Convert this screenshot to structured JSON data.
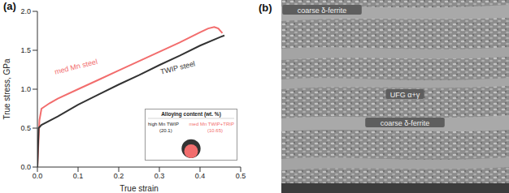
{
  "chart_data": {
    "type": "line",
    "panel": "(a)",
    "x_label": "True strain",
    "y_label": "True stress, GPa",
    "xlim": [
      0,
      0.5
    ],
    "xticks": [
      {
        "value": 0,
        "label": "0.0"
      },
      0.1,
      0.2,
      0.3,
      0.4,
      0.5
    ],
    "ylim": [
      0,
      2.0
    ],
    "yticks": [
      {
        "value": 0,
        "label": "0.0"
      },
      0.5,
      {
        "value": 1,
        "label": "1.0"
      },
      1.5,
      {
        "value": 2,
        "label": "2.0"
      }
    ],
    "series": [
      {
        "name": "med Mn steel",
        "color": "#f26d6d",
        "x": [
          0,
          0.005,
          0.01,
          0.03,
          0.05,
          0.1,
          0.15,
          0.2,
          0.25,
          0.3,
          0.35,
          0.4,
          0.42,
          0.435,
          0.445,
          0.455
        ],
        "values": [
          0,
          0.6,
          0.75,
          0.82,
          0.88,
          1.0,
          1.12,
          1.24,
          1.36,
          1.48,
          1.6,
          1.73,
          1.78,
          1.8,
          1.78,
          1.72
        ]
      },
      {
        "name": "TWIP steel",
        "color": "#333333",
        "x": [
          0,
          0.003,
          0.01,
          0.05,
          0.1,
          0.15,
          0.2,
          0.25,
          0.3,
          0.35,
          0.4,
          0.45,
          0.46
        ],
        "values": [
          0,
          0.5,
          0.54,
          0.65,
          0.8,
          0.93,
          1.06,
          1.18,
          1.31,
          1.43,
          1.56,
          1.67,
          1.69
        ]
      }
    ],
    "inset": {
      "title": "Alloying content (wt. %)",
      "items": [
        {
          "name": "high Mn TWIP",
          "label": "(20.1)",
          "value": 20.1,
          "color": "#333333"
        },
        {
          "name": "med Mn TWIP+TRIP",
          "label": "(10.65)",
          "value": 10.65,
          "color": "#f26d6d"
        }
      ]
    }
  },
  "micrograph": {
    "panel": "(b)",
    "labels": [
      "coarse δ-ferrite",
      "UFG α+γ",
      "coarse δ-ferrite"
    ]
  }
}
